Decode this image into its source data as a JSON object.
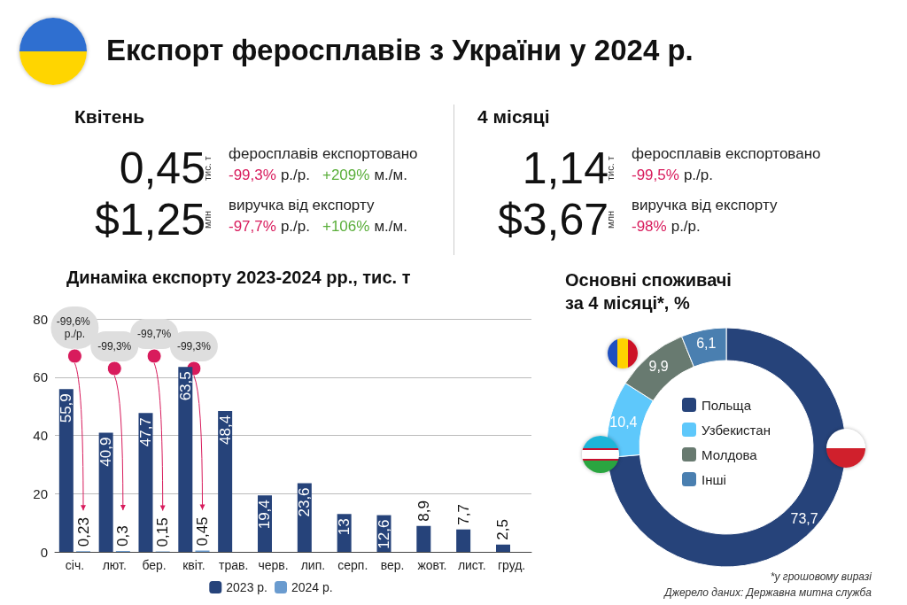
{
  "chart_data": [
    {
      "type": "other",
      "title": "Експорт феросплавів з України у 2024 р."
    },
    {
      "type": "other",
      "title": "Квітень",
      "annotations": [
        "0,45",
        "тис. т",
        "феросплавів експортовано",
        "-99,3% р./р. +209% м./м.",
        "$1,25",
        "млн",
        "виручка від експорту",
        "-97,7% р./р. +106% м./м."
      ]
    },
    {
      "type": "other",
      "title": "4 місяці",
      "annotations": [
        "1,14",
        "тис. т",
        "феросплавів експортовано",
        "-99,5% р./р.",
        "$3,67",
        "млн",
        "виручка від експорту",
        "-98% р./р."
      ]
    },
    {
      "type": "bar",
      "title": "Динаміка експорту 2023-2024 рр., тис. т",
      "categories": [
        "січ.",
        "лют.",
        "бер.",
        "квіт.",
        "трав.",
        "черв.",
        "лип.",
        "серп.",
        "вер.",
        "жовт.",
        "лист.",
        "груд."
      ],
      "series": [
        {
          "name": "2023 р.",
          "color": "#26437a",
          "values": [
            55.9,
            40.9,
            47.7,
            63.5,
            48.4,
            19.4,
            23.6,
            13,
            12.6,
            8.9,
            7.7,
            2.5
          ],
          "value_labels": [
            "55,9",
            "40,9",
            "47,7",
            "63,5",
            "48,4",
            "19,4",
            "23,6",
            "13",
            "12,6",
            "8,9",
            "7,7",
            "2,5"
          ]
        },
        {
          "name": "2024 р.",
          "color": "#6a9bcf",
          "values": [
            0.23,
            0.3,
            0.15,
            0.45,
            null,
            null,
            null,
            null,
            null,
            null,
            null,
            null
          ],
          "value_labels": [
            "0,23",
            "0,3",
            "0,15",
            "0,45",
            null,
            null,
            null,
            null,
            null,
            null,
            null,
            null
          ]
        }
      ],
      "ylim": [
        0,
        80
      ],
      "yticks": [
        0,
        20,
        40,
        60,
        80
      ],
      "grid": "y",
      "legend": "bottom",
      "annotations": [
        "-99,6% р./р.",
        "-99,3%",
        "-99,7%",
        "-99,3%"
      ]
    },
    {
      "type": "donut",
      "title": "Основні споживачі за 4 місяці*, %",
      "categories": [
        "Польща",
        "Узбекистан",
        "Молдова",
        "Інші"
      ],
      "values": [
        73.7,
        10.4,
        9.9,
        6.1
      ],
      "colors": [
        "#26437a",
        "#5ec8fb",
        "#687a70",
        "#4a7fb0"
      ],
      "value_labels": [
        "73,7",
        "10,4",
        "9,9",
        "6,1"
      ],
      "legend": "center",
      "annotations": [
        "*у грошовому виразі",
        "Джерело даних: Державна митна служба"
      ]
    }
  ]
}
